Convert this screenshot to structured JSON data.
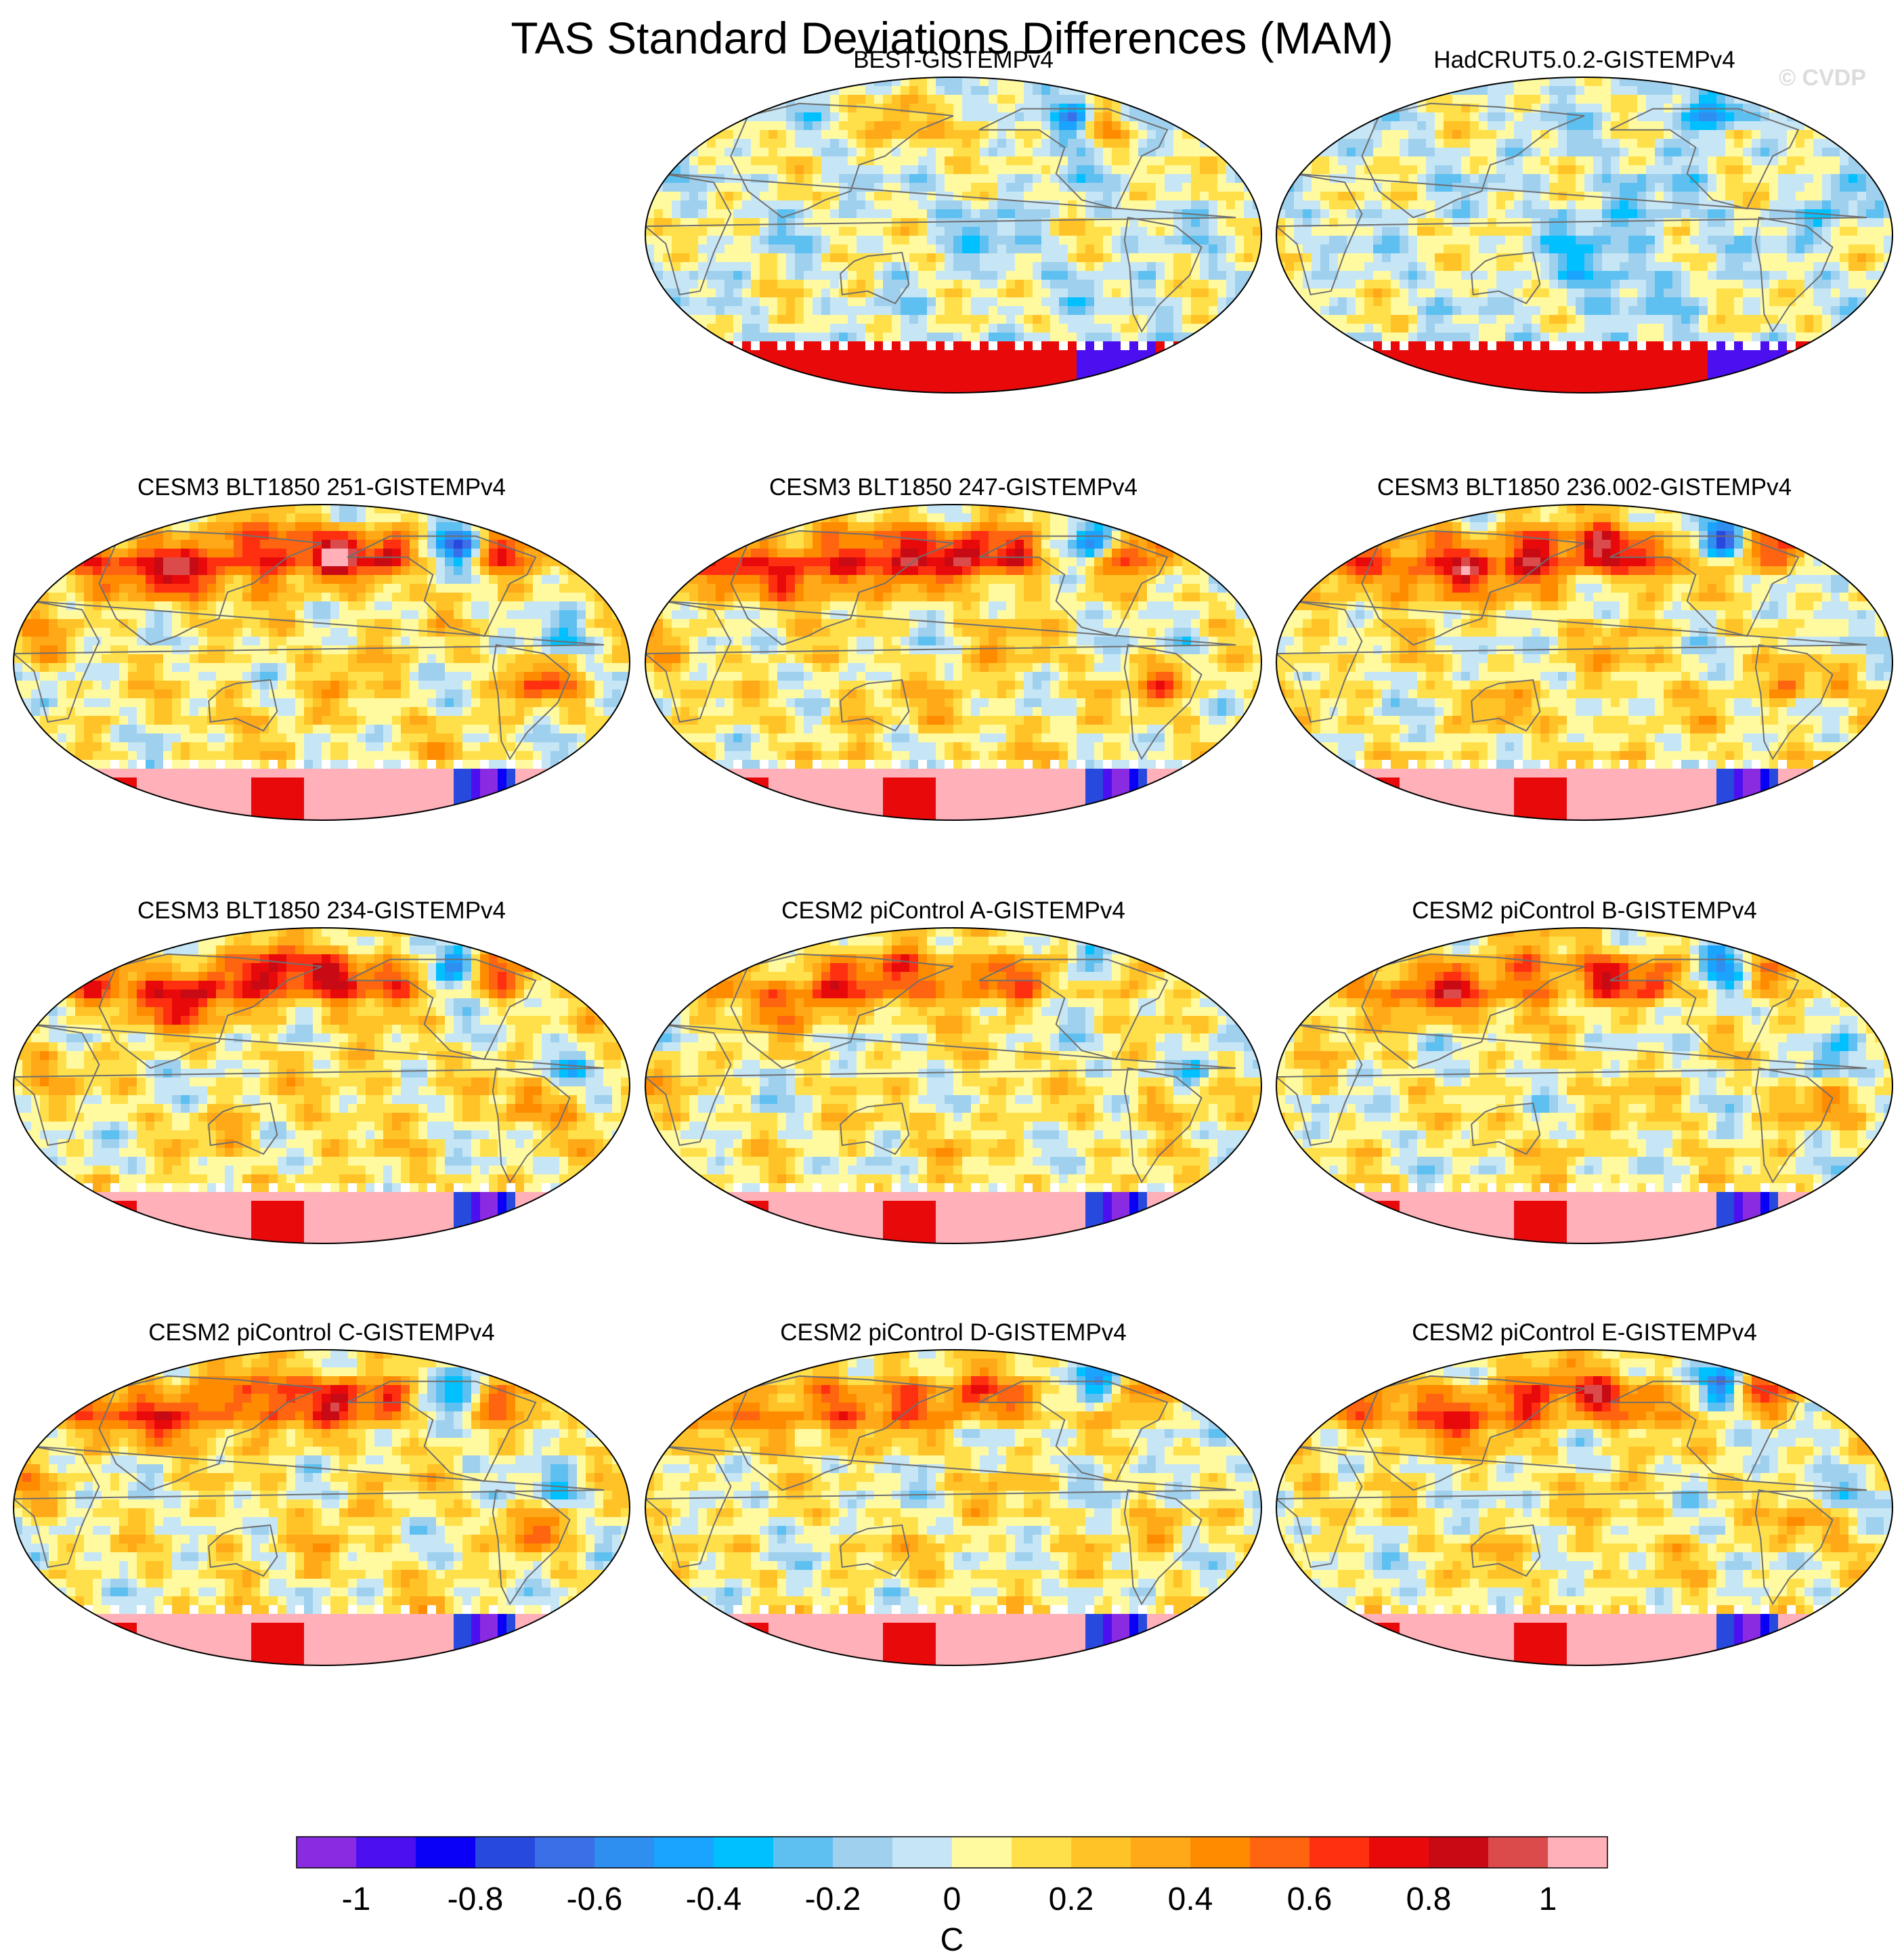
{
  "title": "TAS Standard Deviations Differences (MAM)",
  "watermark": "© CVDP",
  "chart_data": {
    "type": "heatmap",
    "projection": "Robinson (Pacific-centered)",
    "variable": "TAS standard deviation difference",
    "season": "MAM",
    "units_label": "C",
    "colorbar": {
      "levels": [
        -1.1,
        -1.0,
        -0.9,
        -0.8,
        -0.7,
        -0.6,
        -0.5,
        -0.4,
        -0.3,
        -0.2,
        -0.1,
        0,
        0.1,
        0.2,
        0.3,
        0.4,
        0.5,
        0.6,
        0.7,
        0.8,
        0.9,
        1.0,
        1.1
      ],
      "tick_values": [
        -1,
        -0.8,
        -0.6,
        -0.4,
        -0.2,
        0,
        0.2,
        0.4,
        0.6,
        0.8,
        1
      ],
      "tick_labels": [
        "-1",
        "-0.8",
        "-0.6",
        "-0.4",
        "-0.2",
        "0",
        "0.2",
        "0.4",
        "0.6",
        "0.8",
        "1"
      ],
      "colors": [
        "#8a2be2",
        "#4b0ff0",
        "#0a00f5",
        "#2849dd",
        "#3a6fe8",
        "#2f8ff0",
        "#1aa3ff",
        "#00c0ff",
        "#5ec0f0",
        "#9fd0ee",
        "#c6e6f6",
        "#fffaa0",
        "#ffe04a",
        "#ffc328",
        "#ffa818",
        "#ff8c00",
        "#ff6410",
        "#ff3010",
        "#e80a0a",
        "#c80a14",
        "#dc4b4b",
        "#ffb0b8"
      ]
    },
    "panels": [
      {
        "title": "BEST-GISTEMPv4",
        "hot": 0.25,
        "missing": true,
        "style": "obs1"
      },
      {
        "title": "HadCRUT5.0.2-GISTEMPv4",
        "hot": 0.1,
        "missing": true,
        "style": "obs2"
      },
      {
        "title": "CESM3 BLT1850 251-GISTEMPv4",
        "hot": 1.0,
        "missing": false,
        "style": "model"
      },
      {
        "title": "CESM3 BLT1850 247-GISTEMPv4",
        "hot": 1.0,
        "missing": false,
        "style": "model"
      },
      {
        "title": "CESM3 BLT1850 236.002-GISTEMPv4",
        "hot": 0.95,
        "missing": false,
        "style": "model"
      },
      {
        "title": "CESM3 BLT1850 234-GISTEMPv4",
        "hot": 0.95,
        "missing": false,
        "style": "model"
      },
      {
        "title": "CESM2 piControl A-GISTEMPv4",
        "hot": 0.75,
        "missing": false,
        "style": "model"
      },
      {
        "title": "CESM2 piControl B-GISTEMPv4",
        "hot": 0.75,
        "missing": false,
        "style": "model"
      },
      {
        "title": "CESM2 piControl C-GISTEMPv4",
        "hot": 0.85,
        "missing": false,
        "style": "model"
      },
      {
        "title": "CESM2 piControl D-GISTEMPv4",
        "hot": 0.7,
        "missing": false,
        "style": "model"
      },
      {
        "title": "CESM2 piControl E-GISTEMPv4",
        "hot": 0.8,
        "missing": false,
        "style": "model"
      }
    ]
  }
}
